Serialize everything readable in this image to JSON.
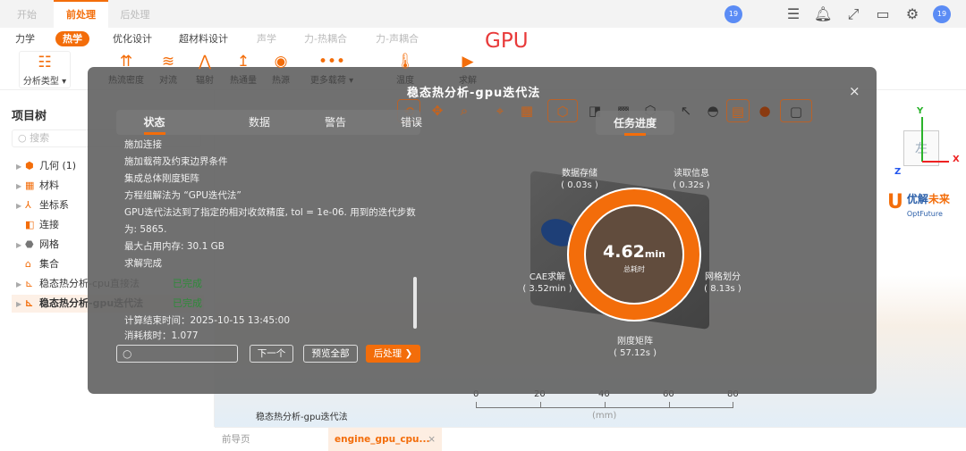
{
  "header": {
    "tabs": [
      {
        "label": "开始"
      },
      {
        "label": "前处理",
        "active": true
      },
      {
        "label": "后处理"
      }
    ],
    "icons": [
      "list-icon",
      "bell-icon",
      "fullscreen-icon",
      "monitor-cloud-icon",
      "gear-icon"
    ],
    "avatar_count": "19",
    "collab_count": "19"
  },
  "subtabs": [
    {
      "label": "力学"
    },
    {
      "label": "热学",
      "active": true
    },
    {
      "label": "优化设计"
    },
    {
      "label": "超材料设计"
    },
    {
      "label": "声学",
      "disabled": true
    },
    {
      "label": "力-热耦合",
      "disabled": true
    },
    {
      "label": "力-声耦合",
      "disabled": true
    }
  ],
  "ribbon": {
    "analysis_type": "分析类型",
    "items": [
      "热流密度",
      "对流",
      "辐射",
      "热通量",
      "热源",
      "更多载荷",
      "温度",
      "求解"
    ]
  },
  "annotation": "GPU",
  "left_panel": {
    "title": "项目树",
    "search_placeholder": "搜索",
    "items": [
      {
        "label": "几何 (1)"
      },
      {
        "label": "材料"
      },
      {
        "label": "坐标系"
      },
      {
        "label": "连接"
      },
      {
        "label": "网格"
      },
      {
        "label": "集合"
      },
      {
        "label": "稳态热分析-cpu直接法",
        "status": "已完成"
      },
      {
        "label": "稳态热分析-gpu迭代法",
        "status": "已完成",
        "selected": true
      }
    ]
  },
  "modal": {
    "title": "稳态热分析-gpu迭代法",
    "close": "×",
    "tabs": [
      {
        "label": "状态",
        "active": true
      },
      {
        "label": "数据"
      },
      {
        "label": "警告"
      },
      {
        "label": "错误"
      }
    ],
    "log": [
      "施加连接",
      "施加载荷及约束边界条件",
      "集成总体刚度矩阵",
      "方程组解法为 “GPU迭代法”",
      "GPU迭代法达到了指定的相对收敛精度, tol = 1e-06. 用到的迭代步数",
      "为: 5865.",
      "最大占用内存: 30.1 GB",
      "求解完成",
      "计算结束时间：2025-10-15 13:45:00",
      "消耗核时：1.077"
    ],
    "buttons": {
      "next": "下一个",
      "preview_all": "预览全部",
      "post": "后处理 ❯"
    },
    "progress_tab": "任务进度",
    "total": {
      "value": "4.62",
      "unit": "min",
      "label": "总耗时"
    },
    "stages": [
      {
        "name": "数据存储",
        "time": "( 0.03s )"
      },
      {
        "name": "读取信息",
        "time": "( 0.32s )"
      },
      {
        "name": "网格划分",
        "time": "( 8.13s )"
      },
      {
        "name": "刚度矩阵",
        "time": "( 57.12s )"
      },
      {
        "name": "CAE求解",
        "time": "( 3.52min )"
      }
    ]
  },
  "viewport": {
    "model_label": "稳态热分析-gpu迭代法",
    "scale": {
      "ticks": [
        "0",
        "20",
        "40",
        "60",
        "80"
      ],
      "unit": "(mm)"
    },
    "axes": {
      "x": "X",
      "y": "Y",
      "z": "Z"
    },
    "logo": {
      "cn1": "优解",
      "cn2": "未来",
      "en": "OptFuture"
    }
  },
  "bottom_tabs": [
    {
      "label": "前导页"
    },
    {
      "label": "engine_gpu_cpu...",
      "active": true
    }
  ],
  "colors": {
    "accent": "#f36d0a",
    "success": "#2e8b3a"
  }
}
